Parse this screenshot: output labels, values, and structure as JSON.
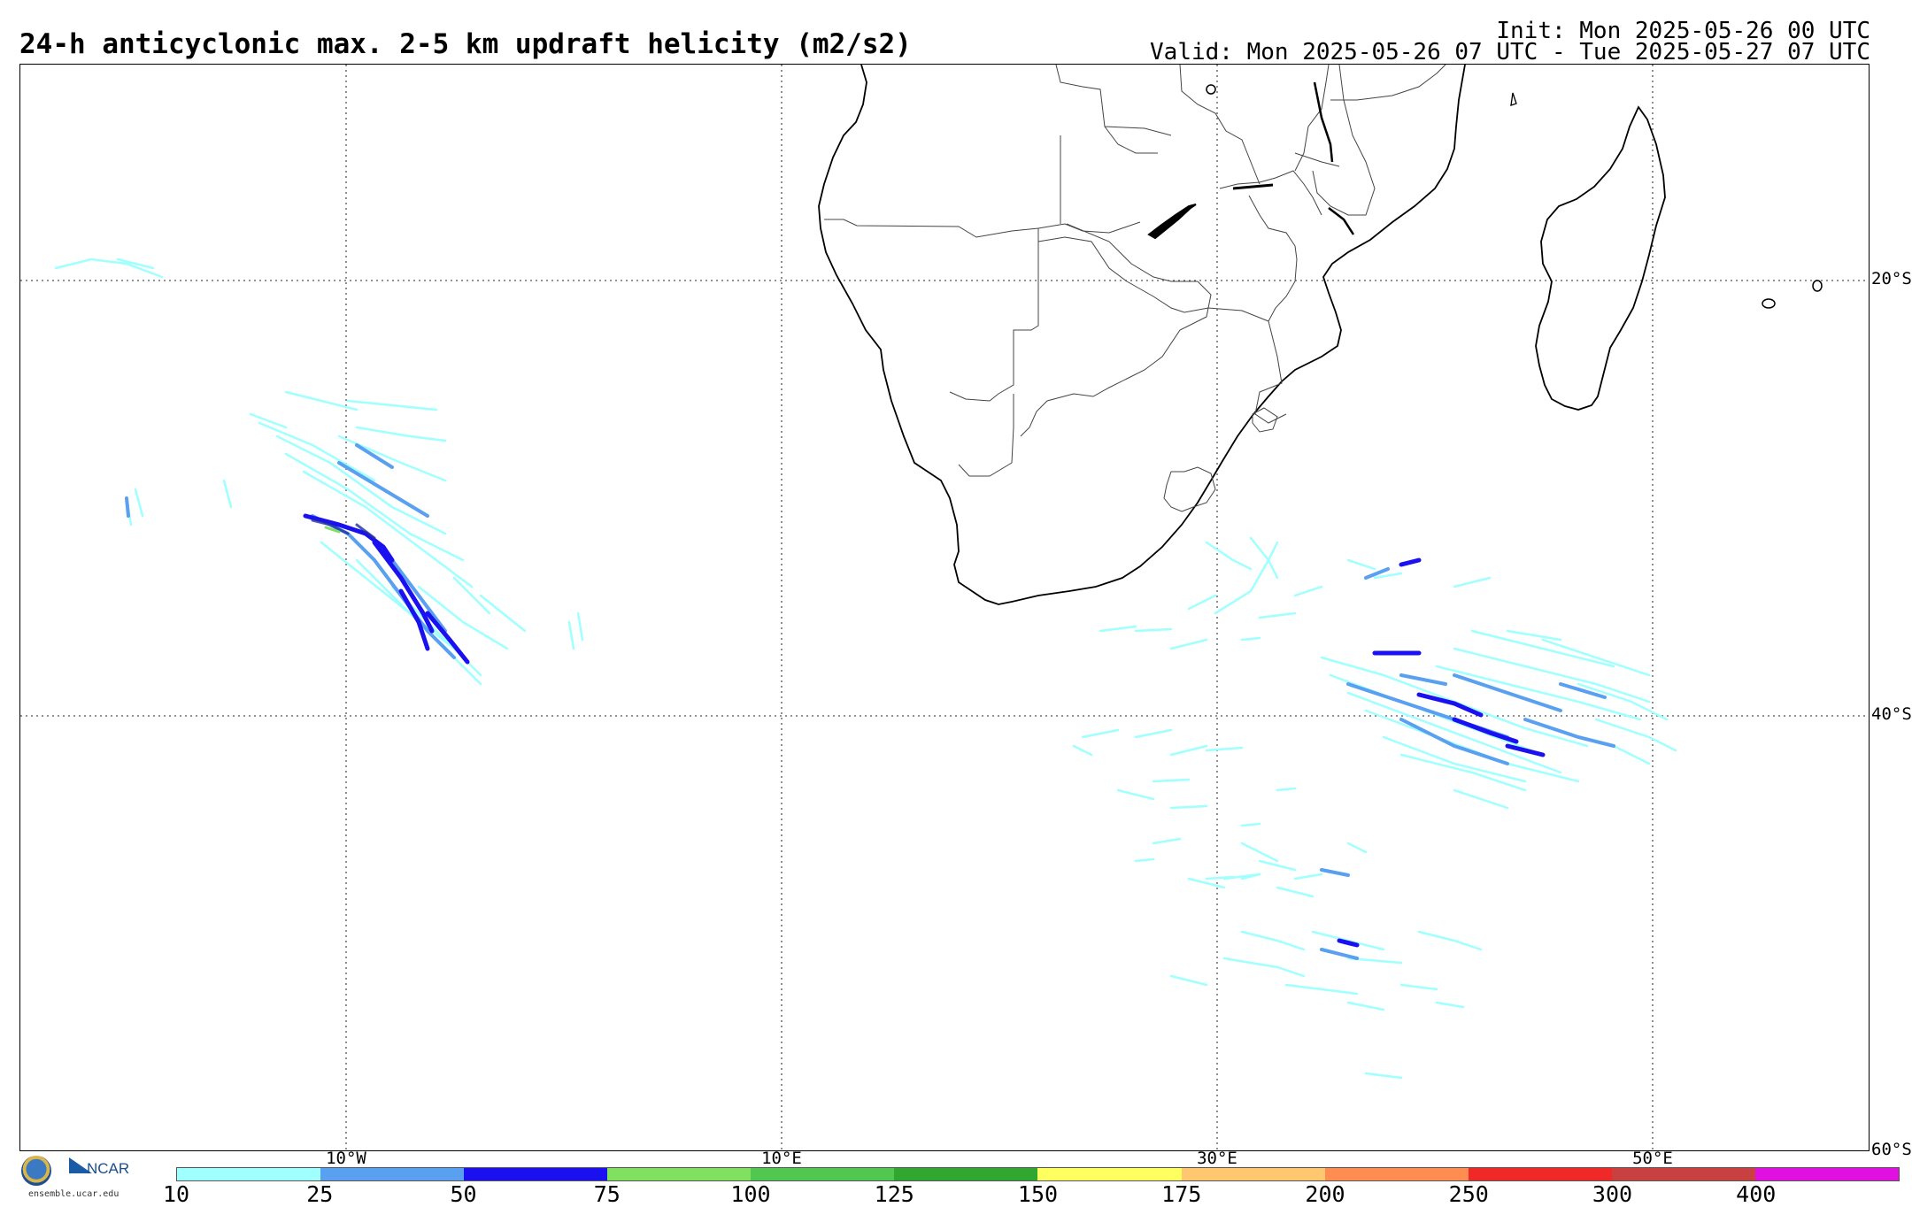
{
  "header": {
    "title": "24-h anticyclonic max. 2-5 km updraft helicity (m2/s2)",
    "init": "Init: Mon 2025-05-26 00 UTC",
    "valid": "Valid: Mon 2025-05-26 07 UTC - Tue 2025-05-27 07 UTC"
  },
  "map": {
    "lat_labels": [
      "20°S",
      "40°S",
      "60°S"
    ],
    "lon_labels": [
      "10°W",
      "10°E",
      "30°E",
      "50°E"
    ]
  },
  "colorbar": {
    "labels": [
      "10",
      "25",
      "50",
      "75",
      "100",
      "125",
      "150",
      "175",
      "200",
      "250",
      "300",
      "400"
    ],
    "colors": [
      "#a0ffff",
      "#5aa0f0",
      "#1a10f0",
      "#80e060",
      "#50c850",
      "#30a830",
      "#ffff60",
      "#ffc870",
      "#ff8c50",
      "#f02828",
      "#c84040",
      "#e010e0"
    ]
  },
  "logo": {
    "site": "ensemble.ucar.edu"
  }
}
